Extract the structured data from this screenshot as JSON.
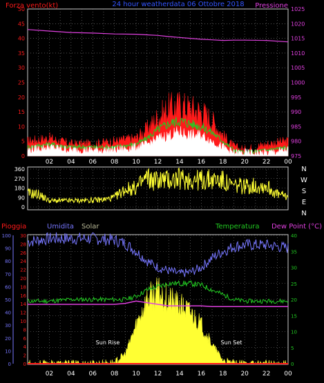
{
  "header": {
    "left_label": "Forza vento(kt)",
    "center_label": "24 hour weatherdata 06 Ottobre 2018",
    "right_label": "Pressione"
  },
  "colors": {
    "red": "#ff1a1a",
    "green": "#22cc22",
    "white": "#ffffff",
    "magenta": "#e040e0",
    "yellow": "#ffff33",
    "blue": "#7777ff",
    "grid": "#888888",
    "tan": "#bbbb99"
  },
  "compass": [
    "N",
    "W",
    "S",
    "E",
    "N"
  ],
  "bottom_header": {
    "pioggia": "Pioggia",
    "umidita": "Umidita",
    "solar": "Solar",
    "temperatura": "Temperatura",
    "dewpoint": "Dew Point (°C)"
  },
  "annotations": {
    "sunrise": "Sun Rise",
    "sunset": "Sun Set"
  },
  "chart_data": [
    {
      "type": "area",
      "title": "24 hour weatherdata 06 Ottobre 2018",
      "ylabel": "Forza vento(kt)",
      "y2label": "Pressione",
      "ylim": [
        0,
        50
      ],
      "y2lim": [
        975,
        1025
      ],
      "y_ticks": [
        0,
        5,
        10,
        15,
        20,
        25,
        30,
        35,
        40,
        45,
        50
      ],
      "y2_ticks": [
        975,
        980,
        985,
        990,
        995,
        1000,
        1005,
        1010,
        1015,
        1020,
        1025
      ],
      "x_ticks": [
        "02",
        "04",
        "06",
        "08",
        "10",
        "12",
        "14",
        "16",
        "18",
        "20",
        "22",
        "00"
      ],
      "grid": true,
      "hours": [
        0,
        2,
        4,
        6,
        8,
        10,
        11,
        12,
        13,
        14,
        15,
        16,
        17,
        18,
        19,
        20,
        22,
        24
      ],
      "series": [
        {
          "values": [
            5,
            6,
            4,
            4,
            5,
            6,
            9,
            13,
            16,
            17,
            16,
            15,
            12,
            7,
            3,
            2,
            4,
            5
          ]
        },
        {
          "values": [
            3,
            4,
            3,
            3,
            3,
            4,
            6,
            9,
            11,
            12,
            11,
            10,
            8,
            5,
            2,
            1,
            2,
            3
          ]
        },
        {
          "values": [
            2,
            3,
            2,
            2,
            2,
            3,
            4,
            6,
            7,
            8,
            7,
            7,
            5,
            3,
            1,
            1,
            1,
            2
          ]
        },
        {
          "values": [
            1018,
            1017.5,
            1017,
            1016.8,
            1016.5,
            1016.4,
            1016.2,
            1016,
            1015.6,
            1015.3,
            1015,
            1014.7,
            1014.5,
            1014.3,
            1014.4,
            1014.4,
            1014.3,
            1013.8
          ]
        }
      ]
    },
    {
      "type": "line",
      "ylim": [
        0,
        360
      ],
      "y_ticks": [
        0,
        90,
        180,
        270,
        360
      ],
      "grid": true,
      "hours": [
        0,
        1,
        2,
        4,
        6,
        7,
        8,
        9,
        10,
        11,
        11.5,
        12,
        13,
        14,
        15,
        16,
        17,
        18,
        18.5,
        19,
        21,
        22,
        23,
        24
      ],
      "series": [
        {
          "values": [
            130,
            120,
            60,
            60,
            65,
            70,
            90,
            170,
            180,
            280,
            250,
            260,
            255,
            265,
            260,
            255,
            260,
            250,
            210,
            200,
            200,
            200,
            120,
            100
          ]
        }
      ]
    },
    {
      "type": "area",
      "left_axes": [
        {
          "label": "Pioggia",
          "ticks": [
            0,
            2,
            4,
            6,
            8,
            10,
            12,
            14,
            16,
            18,
            20,
            22,
            24,
            26,
            28,
            30
          ]
        },
        {
          "label": "Umidita",
          "ticks": [
            0,
            10,
            20,
            30,
            40,
            50,
            60,
            70,
            80,
            90,
            100
          ]
        }
      ],
      "right_axis": {
        "label": "Temperatura / Dew Point (°C)",
        "ticks": [
          0,
          5,
          10,
          15,
          20,
          25,
          30,
          35,
          40
        ]
      },
      "ylim": [
        0,
        40
      ],
      "x_ticks": [
        "02",
        "04",
        "06",
        "08",
        "10",
        "12",
        "14",
        "16",
        "18",
        "20",
        "22",
        "00"
      ],
      "grid": true,
      "hours": [
        0,
        2,
        4,
        6,
        8,
        9,
        10,
        11,
        12,
        13,
        14,
        15,
        16,
        17,
        18,
        19,
        20,
        22,
        24
      ],
      "series": [
        {
          "name": "Umidita",
          "values": [
            38,
            39,
            39,
            39,
            38.5,
            37.5,
            35,
            32,
            30,
            29,
            28,
            28.5,
            30,
            33,
            35,
            36.5,
            37,
            37,
            36
          ]
        },
        {
          "name": "Temperatura",
          "values": [
            19.5,
            19.5,
            20,
            20,
            20,
            20,
            21,
            23,
            24,
            25,
            25,
            25,
            24.5,
            23,
            21.5,
            20,
            19.5,
            19.5,
            19.5
          ]
        },
        {
          "name": "Dew Point (°C)",
          "values": [
            18.5,
            18.5,
            18.5,
            18.5,
            18.5,
            18.8,
            19.5,
            19,
            18.5,
            18,
            18,
            18,
            18,
            17.8,
            17.8,
            17.8,
            17.8,
            17.8,
            17.8
          ]
        },
        {
          "name": "Solar",
          "values": [
            0,
            0,
            0,
            0,
            0.3,
            3,
            12,
            20,
            22,
            20,
            18,
            16,
            12,
            6,
            1,
            0,
            0,
            0,
            0
          ]
        },
        {
          "name": "Pioggia",
          "values": [
            0,
            0,
            0,
            0,
            0,
            0,
            0,
            0,
            0,
            0,
            0,
            0,
            0,
            0,
            0,
            0,
            0,
            0,
            0
          ]
        }
      ]
    }
  ]
}
